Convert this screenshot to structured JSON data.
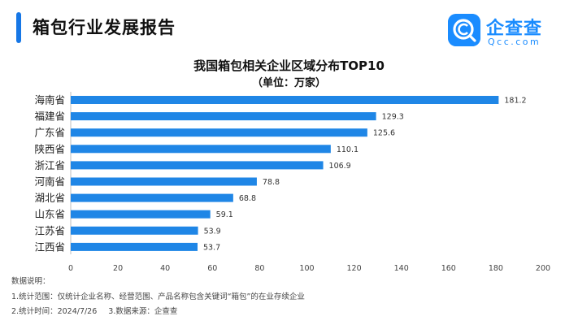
{
  "header": {
    "title": "箱包行业发展报告",
    "accent_color": "#1677e6"
  },
  "logo": {
    "name": "企查查",
    "url": "Qcc.com",
    "icon": "qcc-logo-icon",
    "brand_color": "#1a8cff"
  },
  "chart_data": {
    "type": "bar",
    "orientation": "horizontal",
    "title": "我国箱包相关企业区域分布TOP10",
    "subtitle": "（单位：万家）",
    "categories": [
      "海南省",
      "福建省",
      "广东省",
      "陕西省",
      "浙江省",
      "河南省",
      "湖北省",
      "山东省",
      "江苏省",
      "江西省"
    ],
    "values": [
      181.2,
      129.3,
      125.6,
      110.1,
      106.9,
      78.8,
      68.8,
      59.1,
      53.9,
      53.7
    ],
    "value_labels": [
      "181.2",
      "129.3",
      "125.6",
      "110.1",
      "106.9",
      "78.8",
      "68.8",
      "59.1",
      "53.9",
      "53.7"
    ],
    "xlim": [
      0,
      200
    ],
    "xticks": [
      "0",
      "20",
      "40",
      "60",
      "80",
      "100",
      "120",
      "140",
      "160",
      "180",
      "200"
    ],
    "bar_color": "#1f86e6",
    "grid": false
  },
  "notes": {
    "heading": "数据说明：",
    "line1": "1.统计范围：仅统计企业名称、经营范围、产品名称包含关键词“箱包”的在业存续企业",
    "line2a": "2.统计时间：2024/7/26",
    "line2b": "3.数据来源：企查查"
  }
}
